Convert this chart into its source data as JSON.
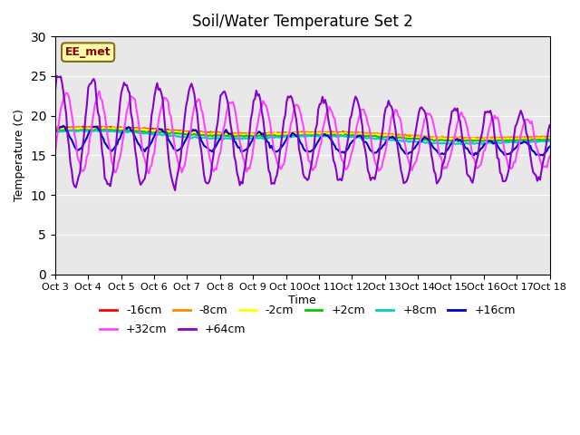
{
  "title": "Soil/Water Temperature Set 2",
  "xlabel": "Time",
  "ylabel": "Temperature (C)",
  "xlim": [
    0,
    15
  ],
  "ylim": [
    0,
    30
  ],
  "yticks": [
    0,
    5,
    10,
    15,
    20,
    25,
    30
  ],
  "xtick_labels": [
    "Oct 3",
    "Oct 4",
    "Oct 5",
    "Oct 6",
    "Oct 7",
    "Oct 8",
    "Oct 9",
    "Oct 10",
    "Oct 11",
    "Oct 12",
    "Oct 13",
    "Oct 14",
    "Oct 15",
    "Oct 16",
    "Oct 17",
    "Oct 18"
  ],
  "annotation_text": "EE_met",
  "series": {
    "-16cm": {
      "color": "#ff0000",
      "lw": 1.5
    },
    "-8cm": {
      "color": "#ff8800",
      "lw": 1.5
    },
    "-2cm": {
      "color": "#ffff00",
      "lw": 1.5
    },
    "+2cm": {
      "color": "#00cc00",
      "lw": 1.5
    },
    "+8cm": {
      "color": "#00cccc",
      "lw": 1.5
    },
    "+16cm": {
      "color": "#0000cc",
      "lw": 1.5
    },
    "+32cm": {
      "color": "#ff44ff",
      "lw": 1.5
    },
    "+64cm": {
      "color": "#8800cc",
      "lw": 1.5
    }
  },
  "plot_bg": "#e8e8e8"
}
